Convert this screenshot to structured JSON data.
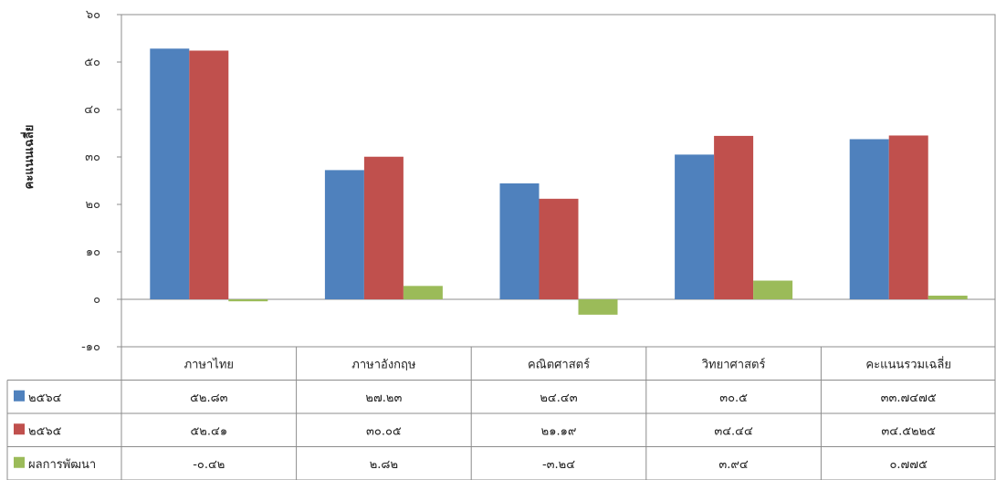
{
  "chart_data": {
    "type": "bar",
    "ylabel": "คะแนนเฉลี่ย",
    "ylim": [
      -10,
      60
    ],
    "yticks": [
      "-๑๐",
      "๐",
      "๑๐",
      "๒๐",
      "๓๐",
      "๔๐",
      "๕๐",
      "๖๐"
    ],
    "categories": [
      "ภาษาไทย",
      "ภาษาอังกฤษ",
      "คณิตศาสตร์",
      "วิทยาศาสตร์",
      "คะแนนรวมเฉลี่ย"
    ],
    "grid": false,
    "legend_placement": "table-left",
    "series": [
      {
        "name": "๒๕๖๔",
        "color": "#4F81BD",
        "values": [
          52.83,
          27.23,
          24.43,
          30.5,
          33.7475
        ],
        "labels": [
          "๕๒.๘๓",
          "๒๗.๒๓",
          "๒๔.๔๓",
          "๓๐.๕",
          "๓๓.๗๔๗๕"
        ]
      },
      {
        "name": "๒๕๖๕",
        "color": "#C0504D",
        "values": [
          52.41,
          30.05,
          21.19,
          34.44,
          34.5225
        ],
        "labels": [
          "๕๒.๔๑",
          "๓๐.๐๕",
          "๒๑.๑๙",
          "๓๔.๔๔",
          "๓๔.๕๒๒๕"
        ]
      },
      {
        "name": "ผลการพัฒนา",
        "color": "#9BBB59",
        "values": [
          -0.42,
          2.82,
          -3.24,
          3.94,
          0.775
        ],
        "labels": [
          "-๐.๔๒",
          "๒.๘๒",
          "-๓.๒๔",
          "๓.๙๔",
          "๐.๗๗๕"
        ]
      }
    ]
  }
}
